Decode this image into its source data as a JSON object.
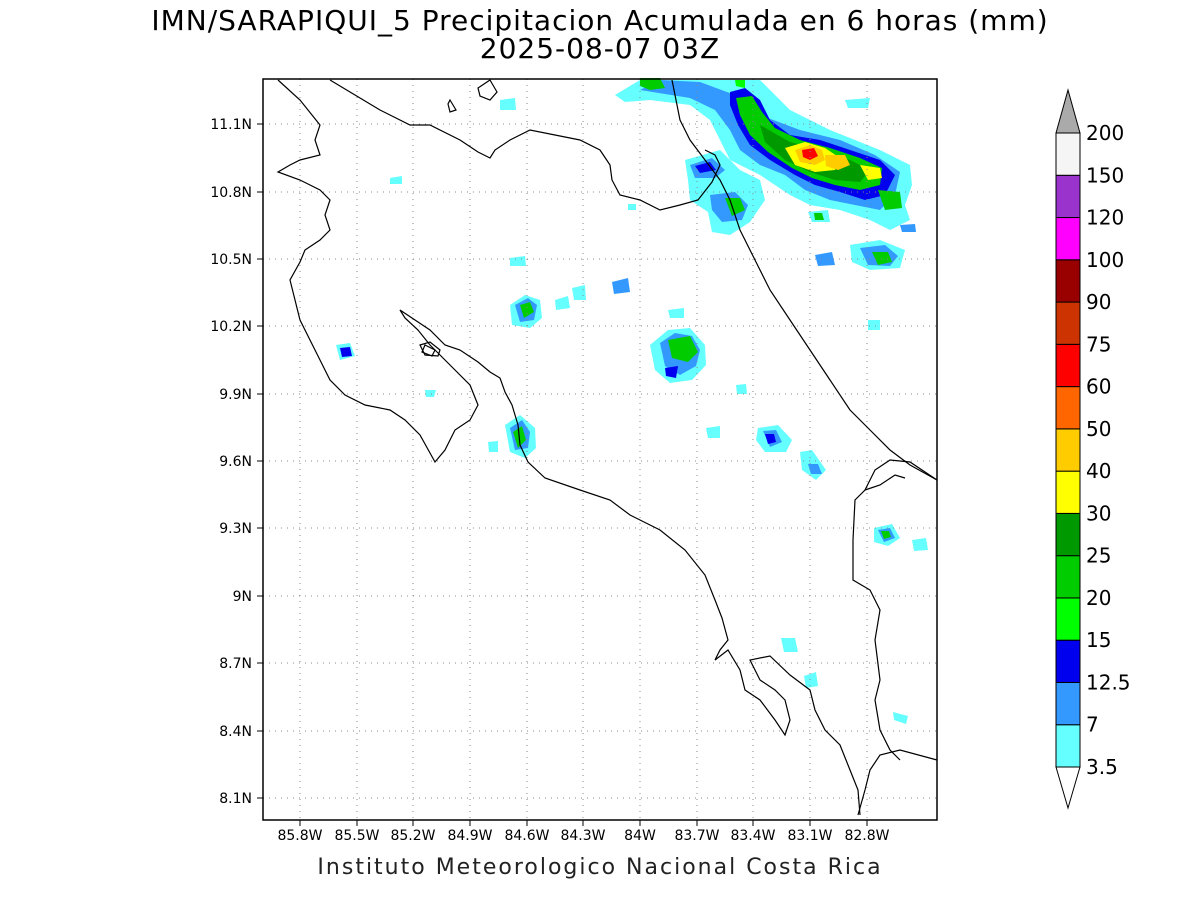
{
  "title": "IMN/SARAPIQUI_5 Precipitacion Acumulada en 6 horas (mm)",
  "subtitle": "2025-08-07 03Z",
  "footer": "Instituto Meteorologico Nacional Costa Rica",
  "axes": {
    "lon_labels": [
      "85.8W",
      "85.5W",
      "85.2W",
      "84.9W",
      "84.6W",
      "84.3W",
      "84W",
      "83.7W",
      "83.4W",
      "83.1W",
      "82.8W"
    ],
    "lat_labels": [
      "11.1N",
      "10.8N",
      "10.5N",
      "10.2N",
      "9.9N",
      "9.6N",
      "9.3N",
      "9N",
      "8.7N",
      "8.4N",
      "8.1N"
    ]
  },
  "colorbar": {
    "levels": [
      "3.5",
      "7",
      "12.5",
      "15",
      "20",
      "25",
      "30",
      "40",
      "50",
      "60",
      "75",
      "90",
      "100",
      "120",
      "150",
      "200"
    ],
    "colors": [
      "#66ffff",
      "#3399ff",
      "#0000ee",
      "#00ff00",
      "#00cc00",
      "#009900",
      "#ffff00",
      "#ffcc00",
      "#ff6600",
      "#ff0000",
      "#cc3300",
      "#990000",
      "#ff00ff",
      "#9933cc",
      "#f5f5f5",
      "#aaaaaa"
    ]
  },
  "colors": {
    "coastline": "#000000",
    "grid": "#888888"
  }
}
